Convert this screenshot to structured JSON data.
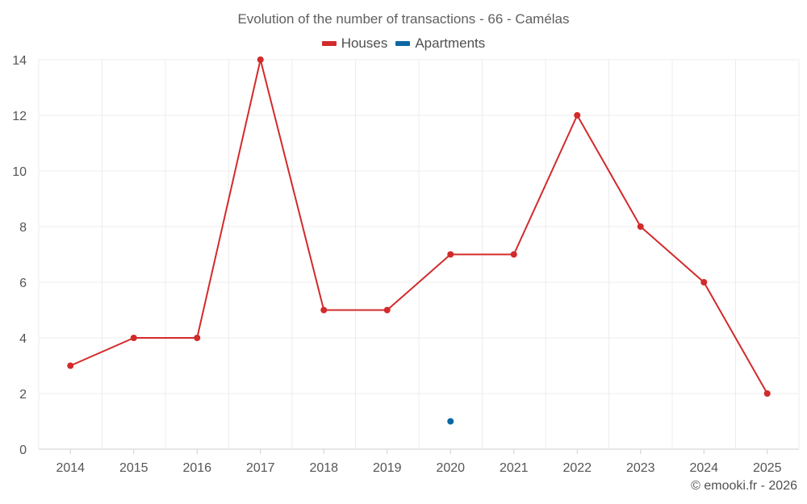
{
  "chart_data": {
    "type": "line",
    "title": "Evolution of the number of transactions - 66 - Camélas",
    "categories": [
      "2014",
      "2015",
      "2016",
      "2017",
      "2018",
      "2019",
      "2020",
      "2021",
      "2022",
      "2023",
      "2024",
      "2025"
    ],
    "ylim": [
      0,
      14
    ],
    "yticks": [
      0,
      2,
      4,
      6,
      8,
      10,
      12,
      14
    ],
    "grid": true,
    "legend_position": "top-center",
    "series": [
      {
        "name": "Houses",
        "color": "#d32a2a",
        "values": [
          3,
          4,
          4,
          14,
          5,
          5,
          7,
          7,
          12,
          8,
          6,
          2
        ]
      },
      {
        "name": "Apartments",
        "color": "#0a67a3",
        "values": [
          null,
          null,
          null,
          null,
          null,
          null,
          1,
          null,
          null,
          null,
          null,
          null
        ]
      }
    ]
  },
  "credit": "© emooki.fr - 2026"
}
